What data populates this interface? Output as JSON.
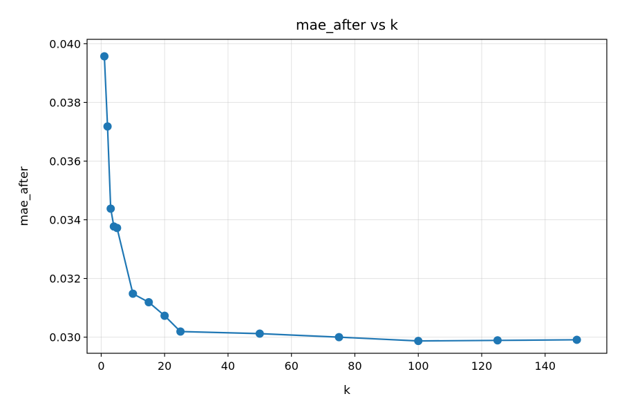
{
  "chart_data": {
    "type": "line",
    "title": "mae_after vs k",
    "xlabel": "k",
    "ylabel": "mae_after",
    "xlim": [
      -4.45,
      159.45
    ],
    "ylim": [
      0.02945,
      0.04015
    ],
    "xticks": [
      0,
      20,
      40,
      60,
      80,
      100,
      120,
      140
    ],
    "yticks": [
      0.03,
      0.032,
      0.034,
      0.036,
      0.038,
      0.04
    ],
    "ytick_labels": [
      "0.030",
      "0.032",
      "0.034",
      "0.036",
      "0.038",
      "0.040"
    ],
    "grid": true,
    "marker": "circle",
    "color": "#1f77b4",
    "series": [
      {
        "x": [
          1,
          2,
          3,
          4,
          5,
          10,
          15,
          20,
          25,
          50,
          75,
          100,
          125,
          150
        ],
        "y": [
          0.03957,
          0.03718,
          0.03438,
          0.03377,
          0.03372,
          0.03148,
          0.03119,
          0.03073,
          0.03019,
          0.03012,
          0.03,
          0.02987,
          0.02989,
          0.02991
        ]
      }
    ]
  }
}
